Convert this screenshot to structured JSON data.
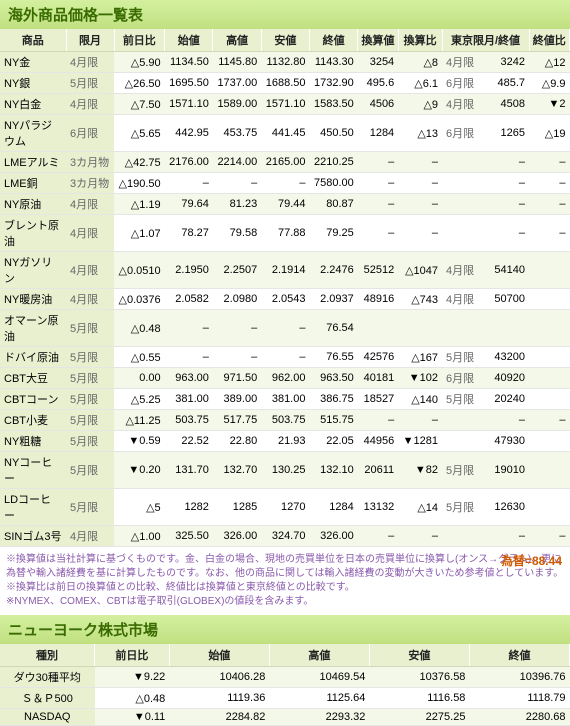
{
  "commodities": {
    "title": "海外商品価格一覧表",
    "headers": [
      "商品",
      "限月",
      "前日比",
      "始値",
      "高値",
      "安値",
      "終値",
      "換算値",
      "換算比",
      "東京限月/終値",
      "終値比"
    ],
    "rows": [
      {
        "name": "NY金",
        "month": "4月限",
        "diff": "△5.90",
        "open": "1134.50",
        "high": "1145.80",
        "low": "1132.80",
        "close": "1143.30",
        "conv": "3254",
        "convdiff": "△8",
        "t_month": "4月限",
        "t_close": "3242",
        "cmp": "△12"
      },
      {
        "name": "NY銀",
        "month": "5月限",
        "diff": "△26.50",
        "open": "1695.50",
        "high": "1737.00",
        "low": "1688.50",
        "close": "1732.90",
        "conv": "495.6",
        "convdiff": "△6.1",
        "t_month": "6月限",
        "t_close": "485.7",
        "cmp": "△9.9"
      },
      {
        "name": "NY白金",
        "month": "4月限",
        "diff": "△7.50",
        "open": "1571.10",
        "high": "1589.00",
        "low": "1571.10",
        "close": "1583.50",
        "conv": "4506",
        "convdiff": "△9",
        "t_month": "4月限",
        "t_close": "4508",
        "cmp": "▼2"
      },
      {
        "name": "NYパラジウム",
        "month": "6月限",
        "diff": "△5.65",
        "open": "442.95",
        "high": "453.75",
        "low": "441.45",
        "close": "450.50",
        "conv": "1284",
        "convdiff": "△13",
        "t_month": "6月限",
        "t_close": "1265",
        "cmp": "△19"
      },
      {
        "name": "LMEアルミ",
        "month": "3カ月物",
        "diff": "△42.75",
        "open": "2176.00",
        "high": "2214.00",
        "low": "2165.00",
        "close": "2210.25",
        "conv": "–",
        "convdiff": "–",
        "t_month": "",
        "t_close": "–",
        "cmp": "–"
      },
      {
        "name": "LME銅",
        "month": "3カ月物",
        "diff": "△190.50",
        "open": "–",
        "high": "–",
        "low": "–",
        "close": "7580.00",
        "conv": "–",
        "convdiff": "–",
        "t_month": "",
        "t_close": "–",
        "cmp": "–"
      },
      {
        "name": "NY原油",
        "month": "4月限",
        "diff": "△1.19",
        "open": "79.64",
        "high": "81.23",
        "low": "79.44",
        "close": "80.87",
        "conv": "–",
        "convdiff": "–",
        "t_month": "",
        "t_close": "–",
        "cmp": "–"
      },
      {
        "name": "ブレント原油",
        "month": "4月限",
        "diff": "△1.07",
        "open": "78.27",
        "high": "79.58",
        "low": "77.88",
        "close": "79.25",
        "conv": "–",
        "convdiff": "–",
        "t_month": "",
        "t_close": "–",
        "cmp": "–"
      },
      {
        "name": "NYガソリン",
        "month": "4月限",
        "diff": "△0.0510",
        "open": "2.1950",
        "high": "2.2507",
        "low": "2.1914",
        "close": "2.2476",
        "conv": "52512",
        "convdiff": "△1047",
        "t_month": "4月限",
        "t_close": "54140",
        "cmp": ""
      },
      {
        "name": "NY暖房油",
        "month": "4月限",
        "diff": "△0.0376",
        "open": "2.0582",
        "high": "2.0980",
        "low": "2.0543",
        "close": "2.0937",
        "conv": "48916",
        "convdiff": "△743",
        "t_month": "4月限",
        "t_close": "50700",
        "cmp": ""
      },
      {
        "name": "オマーン原油",
        "month": "5月限",
        "diff": "△0.48",
        "open": "–",
        "high": "–",
        "low": "–",
        "close": "76.54",
        "conv": "",
        "convdiff": "",
        "t_month": "",
        "t_close": "",
        "cmp": ""
      },
      {
        "name": "ドバイ原油",
        "month": "5月限",
        "diff": "△0.55",
        "open": "–",
        "high": "–",
        "low": "–",
        "close": "76.55",
        "conv": "42576",
        "convdiff": "△167",
        "t_month": "5月限",
        "t_close": "43200",
        "cmp": ""
      },
      {
        "name": "CBT大豆",
        "month": "5月限",
        "diff": "0.00",
        "open": "963.00",
        "high": "971.50",
        "low": "962.00",
        "close": "963.50",
        "conv": "40181",
        "convdiff": "▼102",
        "t_month": "6月限",
        "t_close": "40920",
        "cmp": ""
      },
      {
        "name": "CBTコーン",
        "month": "5月限",
        "diff": "△5.25",
        "open": "381.00",
        "high": "389.00",
        "low": "381.00",
        "close": "386.75",
        "conv": "18527",
        "convdiff": "△140",
        "t_month": "5月限",
        "t_close": "20240",
        "cmp": ""
      },
      {
        "name": "CBT小麦",
        "month": "5月限",
        "diff": "△11.25",
        "open": "503.75",
        "high": "517.75",
        "low": "503.75",
        "close": "515.75",
        "conv": "–",
        "convdiff": "–",
        "t_month": "",
        "t_close": "–",
        "cmp": "–"
      },
      {
        "name": "NY粗糖",
        "month": "5月限",
        "diff": "▼0.59",
        "open": "22.52",
        "high": "22.80",
        "low": "21.93",
        "close": "22.05",
        "conv": "44956",
        "convdiff": "▼1281",
        "t_month": "",
        "t_close": "47930",
        "cmp": ""
      },
      {
        "name": "NYコーヒー",
        "month": "5月限",
        "diff": "▼0.20",
        "open": "131.70",
        "high": "132.70",
        "low": "130.25",
        "close": "132.10",
        "conv": "20611",
        "convdiff": "▼82",
        "t_month": "5月限",
        "t_close": "19010",
        "cmp": ""
      },
      {
        "name": "LDコーヒー",
        "month": "5月限",
        "diff": "△5",
        "open": "1282",
        "high": "1285",
        "low": "1270",
        "close": "1284",
        "conv": "13132",
        "convdiff": "△14",
        "t_month": "5月限",
        "t_close": "12630",
        "cmp": ""
      },
      {
        "name": "SINゴム3号",
        "month": "4月限",
        "diff": "△1.00",
        "open": "325.50",
        "high": "326.00",
        "low": "324.70",
        "close": "326.00",
        "conv": "–",
        "convdiff": "–",
        "t_month": "",
        "t_close": "–",
        "cmp": "–"
      }
    ],
    "notes1": "※換算値は当社計算に基づくものです。金、白金の場合、現地の売買単位を日本の売買単位に換算し(オンス→グラム)、更に為替や輸入諸経費を基に計算したものです。なお、他の商品に関しては輸入諸経費の変動が大きいため参考値としています。",
    "notes2": "※換算比は前日の換算値との比較、終値比は換算値と東京終値との比較です。",
    "notes3": "※NYMEX、COMEX、CBTは電子取引(GLOBEX)の値段を含みます。",
    "fx_label": "為替=88.44"
  },
  "stocks": {
    "title": "ニューヨーク株式市場",
    "headers": [
      "種別",
      "前日比",
      "始値",
      "高値",
      "安値",
      "終値"
    ],
    "rows": [
      {
        "name": "ダウ30種平均",
        "diff": "▼9.22",
        "open": "10406.28",
        "high": "10469.54",
        "low": "10376.58",
        "close": "10396.76"
      },
      {
        "name": "Ｓ＆Ｐ500",
        "diff": "△0.48",
        "open": "1119.36",
        "high": "1125.64",
        "low": "1116.58",
        "close": "1118.79"
      },
      {
        "name": "NASDAQ",
        "diff": "▼0.11",
        "open": "2284.82",
        "high": "2293.32",
        "low": "2275.25",
        "close": "2280.68"
      }
    ]
  }
}
